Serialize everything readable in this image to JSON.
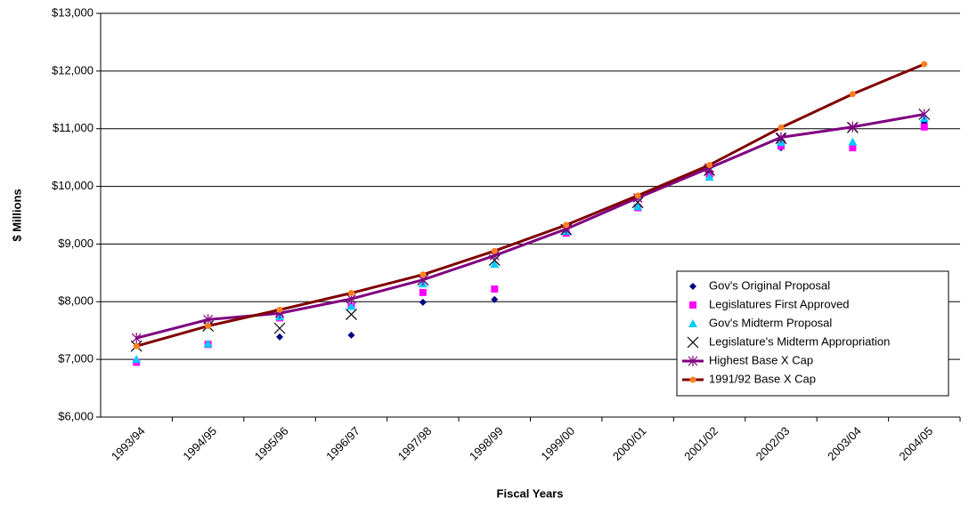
{
  "chart_data": {
    "type": "line",
    "x_label": "Fiscal Years",
    "y_label": "$ Millions",
    "categories": [
      "1993/94",
      "1994/95",
      "1995/96",
      "1996/97",
      "1997/98",
      "1998/99",
      "1999/00",
      "2000/01",
      "2001/02",
      "2002/03",
      "2003/04",
      "2004/05"
    ],
    "ylim": [
      6000,
      13000
    ],
    "yticks": [
      {
        "value": 6000,
        "label": "$6,000"
      },
      {
        "value": 7000,
        "label": "$7,000"
      },
      {
        "value": 8000,
        "label": "$8,000"
      },
      {
        "value": 9000,
        "label": "$9,000"
      },
      {
        "value": 10000,
        "label": "$10,000"
      },
      {
        "value": 11000,
        "label": "$11,000"
      },
      {
        "value": 12000,
        "label": "$12,000"
      },
      {
        "value": 13000,
        "label": "$13,000"
      }
    ],
    "legend": "right",
    "series": [
      {
        "name": "Gov's Original Proposal",
        "color": "#000080",
        "marker": "diamond",
        "line": false,
        "values": [
          6970,
          7270,
          7390,
          7420,
          7990,
          8040,
          9190,
          9660,
          10200,
          10670,
          10700,
          11100
        ]
      },
      {
        "name": "Legislatures First Approved",
        "color": "#ff00ff",
        "marker": "square",
        "line": false,
        "values": [
          6950,
          7260,
          7720,
          7920,
          8160,
          8220,
          9190,
          9630,
          10210,
          10700,
          10670,
          11030
        ]
      },
      {
        "name": "Gov's Midterm Proposal",
        "color": "#00ccff",
        "marker": "triangle",
        "line": false,
        "values": [
          7000,
          7270,
          7740,
          7920,
          8310,
          8650,
          9220,
          9650,
          10160,
          10760,
          10770,
          11180
        ]
      },
      {
        "name": "Legislature's Midterm Appropriation",
        "color": "#000000",
        "marker": "x",
        "line": false,
        "values": [
          7230,
          7580,
          7540,
          7780,
          8380,
          8720,
          9250,
          9720,
          10280,
          10830,
          11020,
          11250
        ]
      },
      {
        "name": "Highest Base X Cap",
        "color": "#800080",
        "marker": "star",
        "line": true,
        "values": [
          7370,
          7690,
          7800,
          8050,
          8380,
          8800,
          9260,
          9800,
          10320,
          10850,
          11030,
          11250
        ]
      },
      {
        "name": "1991/92 Base X Cap",
        "color": "#800000",
        "marker": "circle",
        "marker_color": "#ff8020",
        "line": true,
        "values": [
          7230,
          7580,
          7860,
          8150,
          8470,
          8880,
          9330,
          9840,
          10370,
          11020,
          11600,
          12120
        ]
      }
    ]
  }
}
